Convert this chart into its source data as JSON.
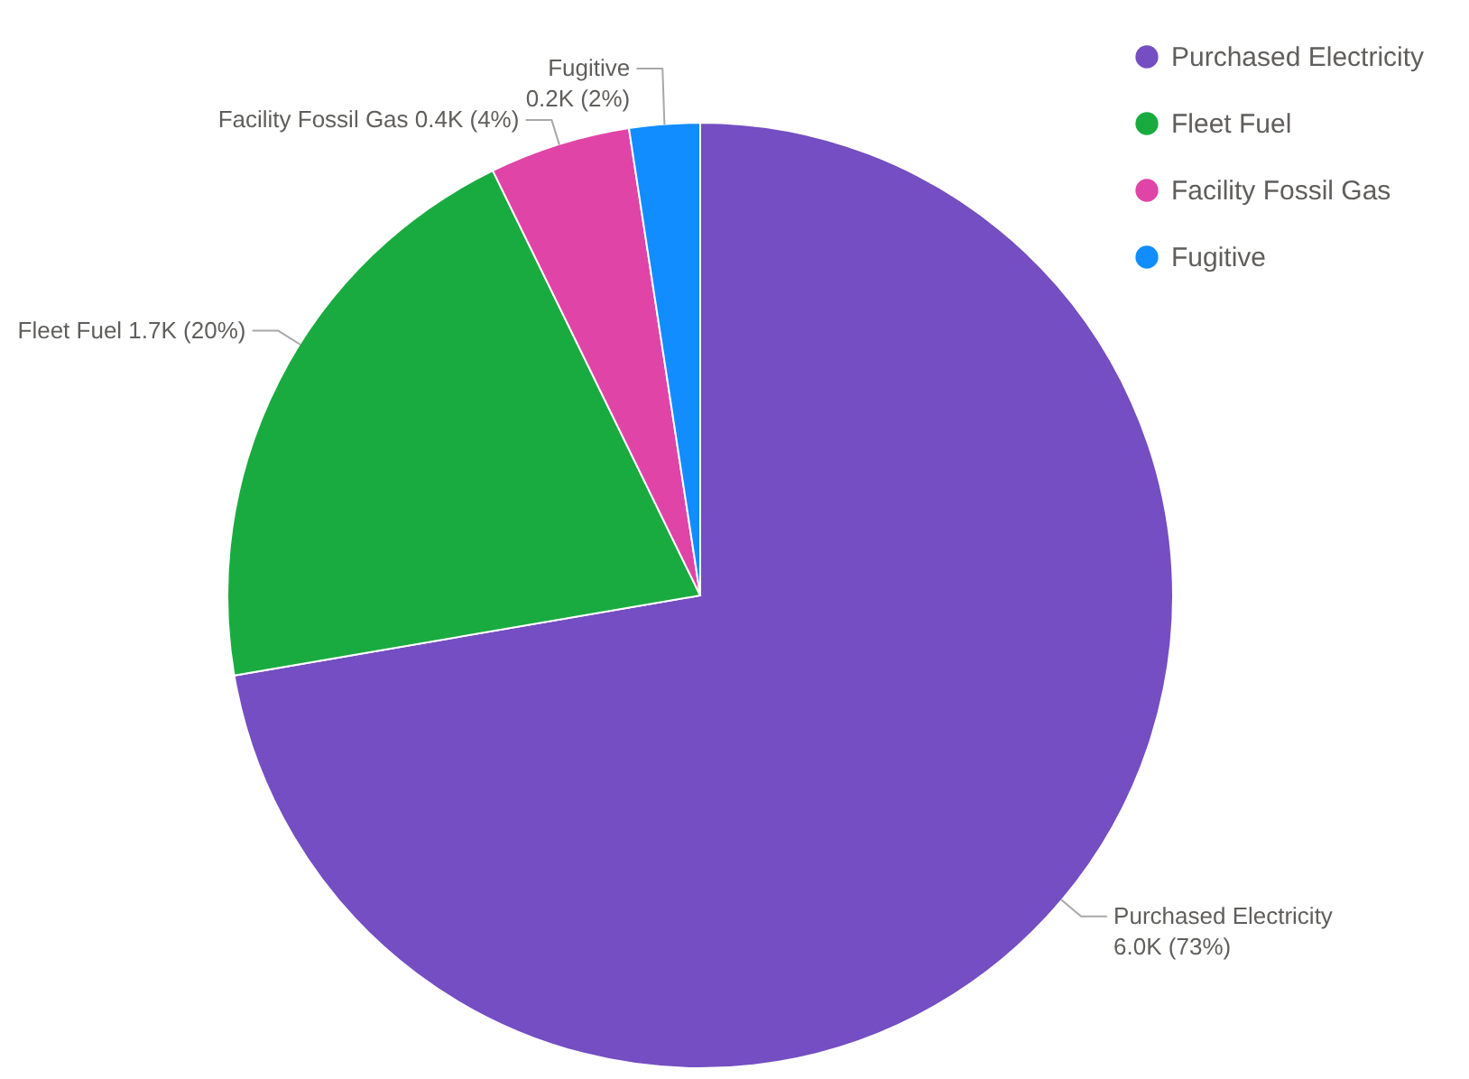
{
  "chart_data": {
    "type": "pie",
    "categories": [
      "Purchased Electricity",
      "Fleet Fuel",
      "Facility Fossil Gas",
      "Fugitive"
    ],
    "values": [
      6000,
      1700,
      400,
      200
    ],
    "value_labels": [
      "6.0K (73%)",
      "1.7K (20%)",
      "0.4K (4%)",
      "0.2K (2%)"
    ],
    "colors": [
      "#744ec2",
      "#1aab40",
      "#e044a7",
      "#118dff"
    ],
    "legend": "top right"
  }
}
